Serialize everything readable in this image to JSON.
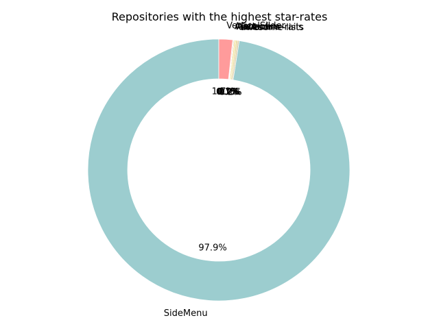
{
  "chart_data": {
    "type": "pie",
    "style": "donut",
    "title": "Repositories with the highest star-rates",
    "start_angle_deg": 90,
    "direction": "counterclockwise",
    "slices": [
      {
        "label": "SideMenu",
        "value": 97.9,
        "pct_label": "97.9%",
        "color": "#9ccdcf"
      },
      {
        "label": "awesome-lists",
        "value": 0.2,
        "pct_label": "0.2%",
        "color": "#d9c8a0"
      },
      {
        "label": "awesome-rails",
        "value": 0.2,
        "pct_label": "0.2%",
        "color": "#e5d48f"
      },
      {
        "label": "Alamofire",
        "value": 0.2,
        "pct_label": "0.2%",
        "color": "#f3e29b"
      },
      {
        "label": "fastlane",
        "value": 0.1,
        "pct_label": "0.1%",
        "color": "#c2b89a"
      },
      {
        "label": "Alert",
        "value": 0.1,
        "pct_label": "0.1%",
        "color": "#f6c49c"
      },
      {
        "label": "VerticalSlider",
        "value": 1.7,
        "pct_label": "1.7%",
        "color": "#ff9b9b"
      }
    ]
  }
}
